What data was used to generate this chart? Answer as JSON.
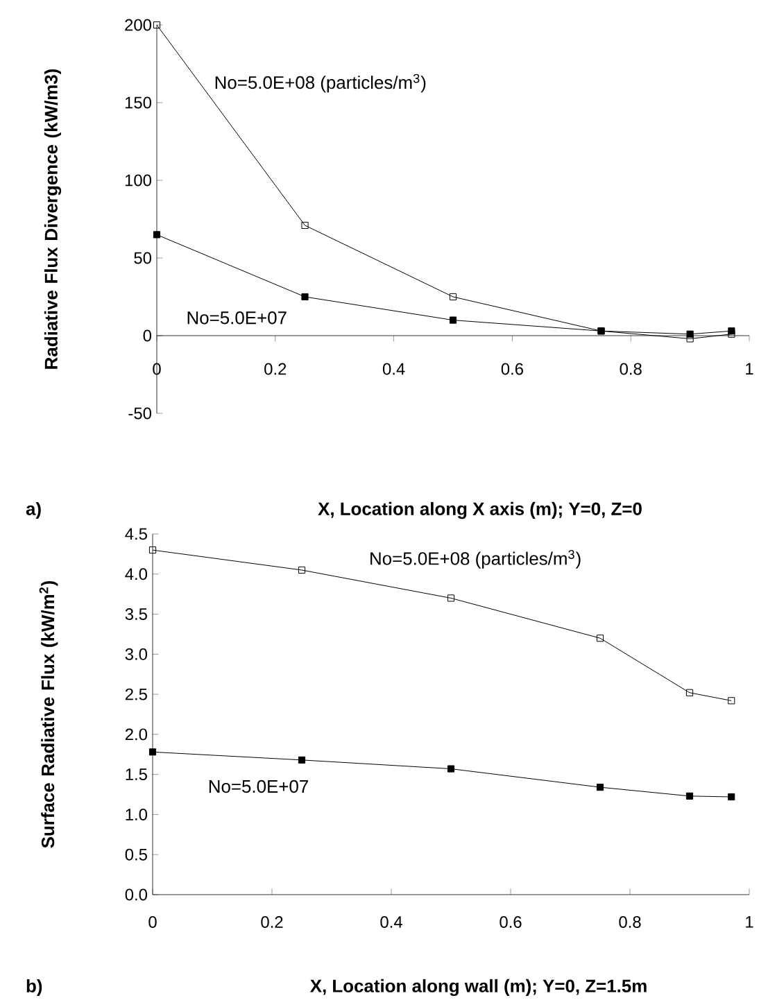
{
  "chart_data": [
    {
      "type": "line",
      "xlabel": "X, Location along X axis (m);  Y=0, Z=0",
      "ylabel": "Radiative Flux Divergence (kW/m3)",
      "annotations": [
        "a)"
      ],
      "x": [
        0,
        0.25,
        0.5,
        0.75,
        0.9,
        0.97
      ],
      "xlim": [
        0,
        1
      ],
      "xticks": [
        0,
        0.2,
        0.4,
        0.6,
        0.8,
        1
      ],
      "ylim": [
        -50,
        200
      ],
      "yticks": [
        -50,
        0,
        50,
        100,
        150,
        200
      ],
      "grid": false,
      "series": [
        {
          "name": "No=5.0E+08 (particles/m$^{3}$)",
          "color": "#000000",
          "marker": "square",
          "values": [
            200,
            71,
            25,
            3,
            -2,
            1
          ]
        },
        {
          "name": "No=5.0E+07",
          "color": "#000000",
          "marker": "square*",
          "values": [
            65,
            25,
            10,
            3,
            1,
            3
          ]
        }
      ]
    },
    {
      "type": "line",
      "xlabel": "X, Location along wall (m);  Y=0, Z=1.5m",
      "ylabel": "Surface Radiative Flux (kW/m$^{2}$)",
      "annotations": [
        "b)"
      ],
      "x": [
        0,
        0.25,
        0.5,
        0.75,
        0.9,
        0.97
      ],
      "xlim": [
        0,
        1
      ],
      "xticks": [
        0,
        0.2,
        0.4,
        0.6,
        0.8,
        1
      ],
      "ylim": [
        0,
        4.5
      ],
      "yticks": [
        {
          "value": 0,
          "label": "0.0"
        },
        0.5,
        {
          "value": 1,
          "label": "1.0"
        },
        1.5,
        {
          "value": 2,
          "label": "2.0"
        },
        2.5,
        {
          "value": 3,
          "label": "3.0"
        },
        3.5,
        {
          "value": 4,
          "label": "4.0"
        },
        4.5
      ],
      "grid": false,
      "series": [
        {
          "name": "No=5.0E+08 (particles/m$^{3}$)",
          "color": "#000000",
          "marker": "square",
          "values": [
            4.3,
            4.05,
            3.7,
            3.2,
            2.52,
            2.42
          ]
        },
        {
          "name": "No=5.0E+07",
          "color": "#000000",
          "marker": "square*",
          "values": [
            1.78,
            1.68,
            1.57,
            1.34,
            1.23,
            1.22
          ]
        }
      ]
    }
  ]
}
